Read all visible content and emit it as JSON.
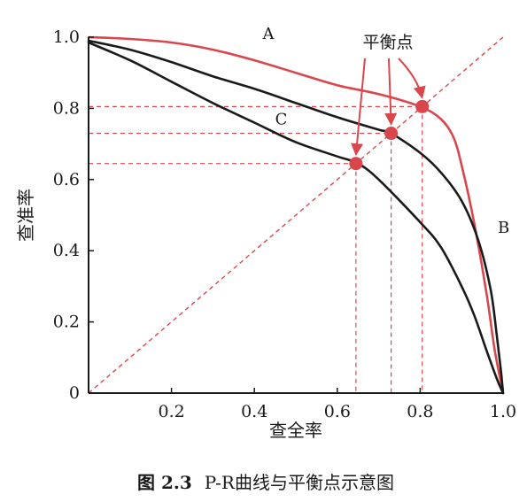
{
  "chart_data": {
    "type": "line",
    "xlabel": "查全率",
    "ylabel": "查准率",
    "xlim": [
      0,
      1.0
    ],
    "ylim": [
      0,
      1.0
    ],
    "x_ticks": [
      "0.2",
      "0.4",
      "0.6",
      "0.8",
      "1.0"
    ],
    "y_ticks": [
      "0",
      "0.2",
      "0.4",
      "0.6",
      "0.8",
      "1.0"
    ],
    "grid": false,
    "series": [
      {
        "name": "A",
        "color": "#d9474c",
        "x": [
          0,
          0.1,
          0.2,
          0.3,
          0.4,
          0.5,
          0.6,
          0.7,
          0.8,
          0.85,
          0.88,
          0.9,
          0.93,
          0.96,
          0.98,
          1.0
        ],
        "y": [
          1.0,
          0.995,
          0.985,
          0.965,
          0.935,
          0.9,
          0.865,
          0.84,
          0.805,
          0.77,
          0.72,
          0.64,
          0.48,
          0.28,
          0.12,
          0
        ]
      },
      {
        "name": "B",
        "color": "#1a1a1a",
        "x": [
          0,
          0.1,
          0.2,
          0.3,
          0.4,
          0.5,
          0.6,
          0.7,
          0.73,
          0.8,
          0.85,
          0.9,
          0.94,
          0.97,
          0.985,
          0.995,
          1.0
        ],
        "y": [
          0.99,
          0.965,
          0.93,
          0.89,
          0.855,
          0.815,
          0.775,
          0.74,
          0.73,
          0.675,
          0.62,
          0.54,
          0.43,
          0.29,
          0.16,
          0.06,
          0
        ]
      },
      {
        "name": "C",
        "color": "#1a1a1a",
        "x": [
          0,
          0.1,
          0.2,
          0.3,
          0.4,
          0.5,
          0.6,
          0.65,
          0.7,
          0.8,
          0.85,
          0.9,
          0.93,
          0.96,
          0.985,
          1.0
        ],
        "y": [
          0.985,
          0.935,
          0.875,
          0.815,
          0.76,
          0.705,
          0.665,
          0.645,
          0.6,
          0.48,
          0.41,
          0.3,
          0.22,
          0.12,
          0.04,
          0
        ]
      }
    ],
    "diagonal": {
      "color": "#d9474c",
      "style": "dashed",
      "x": [
        0,
        1.0
      ],
      "y": [
        0,
        1.0
      ]
    },
    "balance_points": [
      {
        "curve": "A",
        "x": 0.805,
        "y": 0.805
      },
      {
        "curve": "B",
        "x": 0.73,
        "y": 0.73
      },
      {
        "curve": "C",
        "x": 0.645,
        "y": 0.645
      }
    ],
    "curve_labels": [
      {
        "text": "A",
        "x": 0.42,
        "y": 0.995
      },
      {
        "text": "B",
        "x": 1.0,
        "y": 0.45
      },
      {
        "text": "C",
        "x": 0.45,
        "y": 0.755
      }
    ],
    "annotation": {
      "text": "平衡点"
    },
    "caption": {
      "label": "图 2.3",
      "text": "P-R曲线与平衡点示意图"
    }
  },
  "colors": {
    "accent": "#d9474c",
    "ink": "#1a1a1a",
    "point": "#d9474c"
  }
}
